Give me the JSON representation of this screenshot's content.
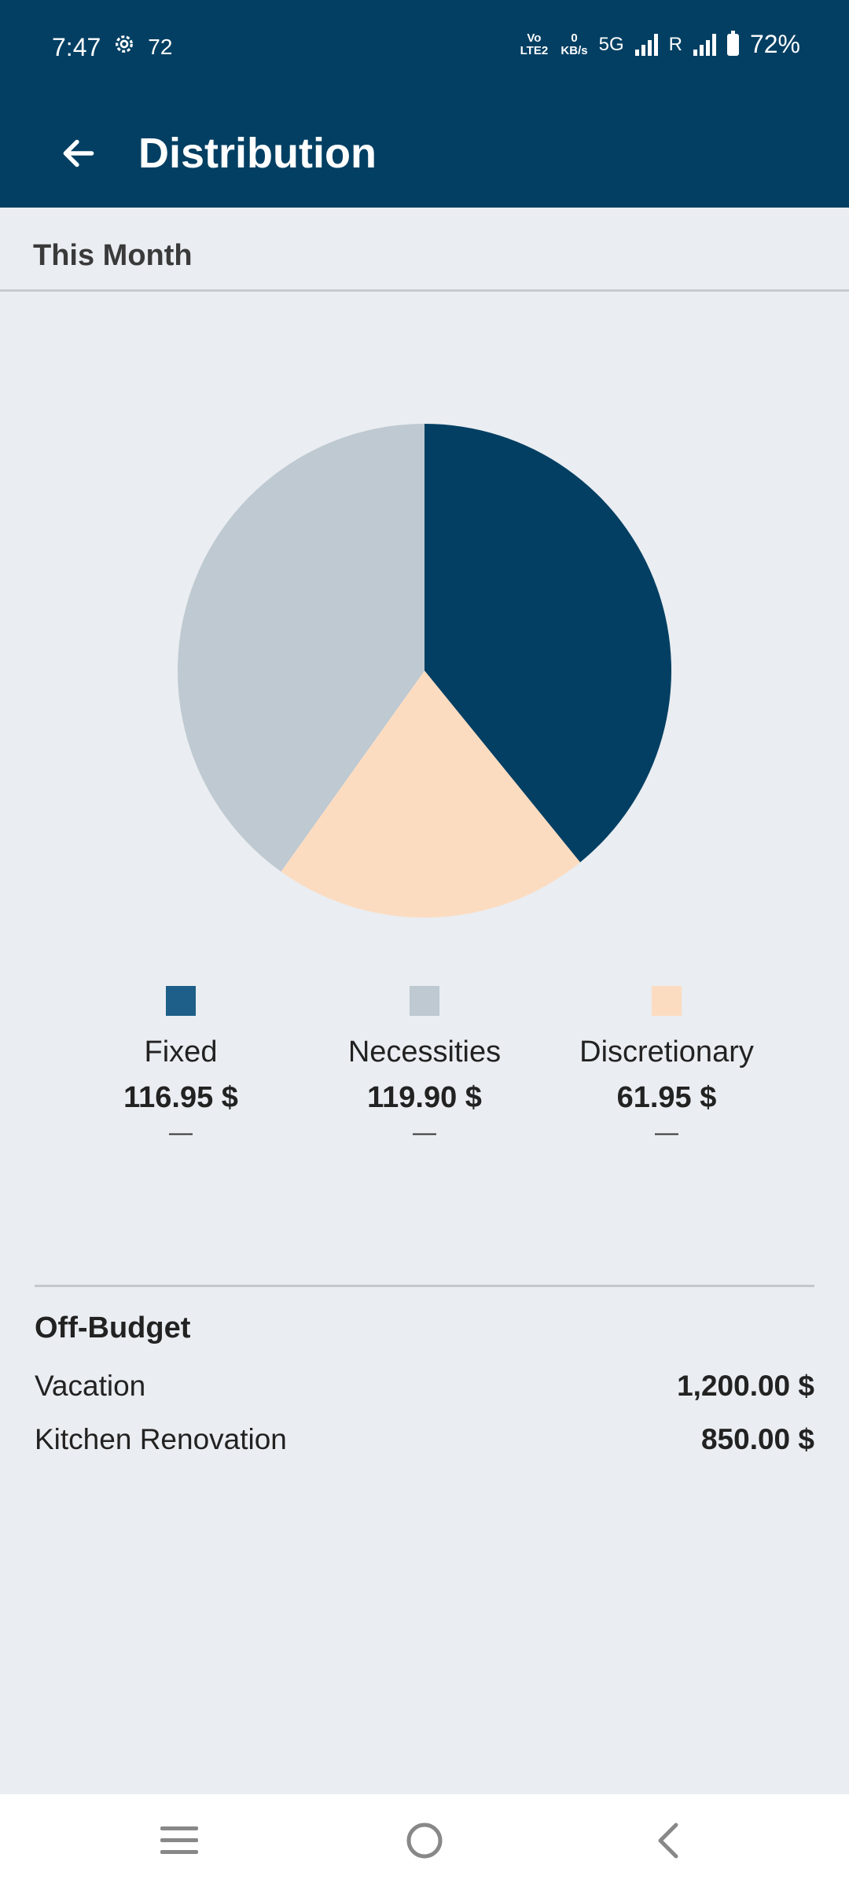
{
  "status_bar": {
    "time": "7:47",
    "notification_count": "72",
    "volte_label": "Vo LTE2",
    "data_speed_value": "0",
    "data_speed_unit": "KB/s",
    "network": "5G",
    "roaming": "R",
    "battery": "72%",
    "icons": [
      "gear-icon",
      "signal-icon",
      "battery-icon"
    ]
  },
  "app_bar": {
    "title": "Distribution",
    "back_icon": "arrow-left-icon"
  },
  "section": {
    "title": "This Month"
  },
  "chart_data": {
    "type": "pie",
    "start_angle_deg": 0,
    "slices": [
      {
        "label": "Fixed",
        "value": 116.95,
        "color": "#023f63"
      },
      {
        "label": "Discretionary",
        "value": 61.95,
        "color": "#fcdcc0"
      },
      {
        "label": "Necessities",
        "value": 119.9,
        "color": "#bec9d1"
      }
    ]
  },
  "legend": [
    {
      "label": "Fixed",
      "value": "116.95 $",
      "dash": "—",
      "color": "#1d5f88"
    },
    {
      "label": "Necessities",
      "value": "119.90 $",
      "dash": "—",
      "color": "#bec9d1"
    },
    {
      "label": "Discretionary",
      "value": "61.95 $",
      "dash": "—",
      "color": "#fcdcc0"
    }
  ],
  "off_budget": {
    "title": "Off-Budget",
    "items": [
      {
        "name": "Vacation",
        "amount": "1,200.00 $"
      },
      {
        "name": "Kitchen Renovation",
        "amount": "850.00 $"
      }
    ]
  },
  "nav_bar": {
    "icons": [
      "menu-icon",
      "home-icon",
      "back-icon"
    ]
  }
}
